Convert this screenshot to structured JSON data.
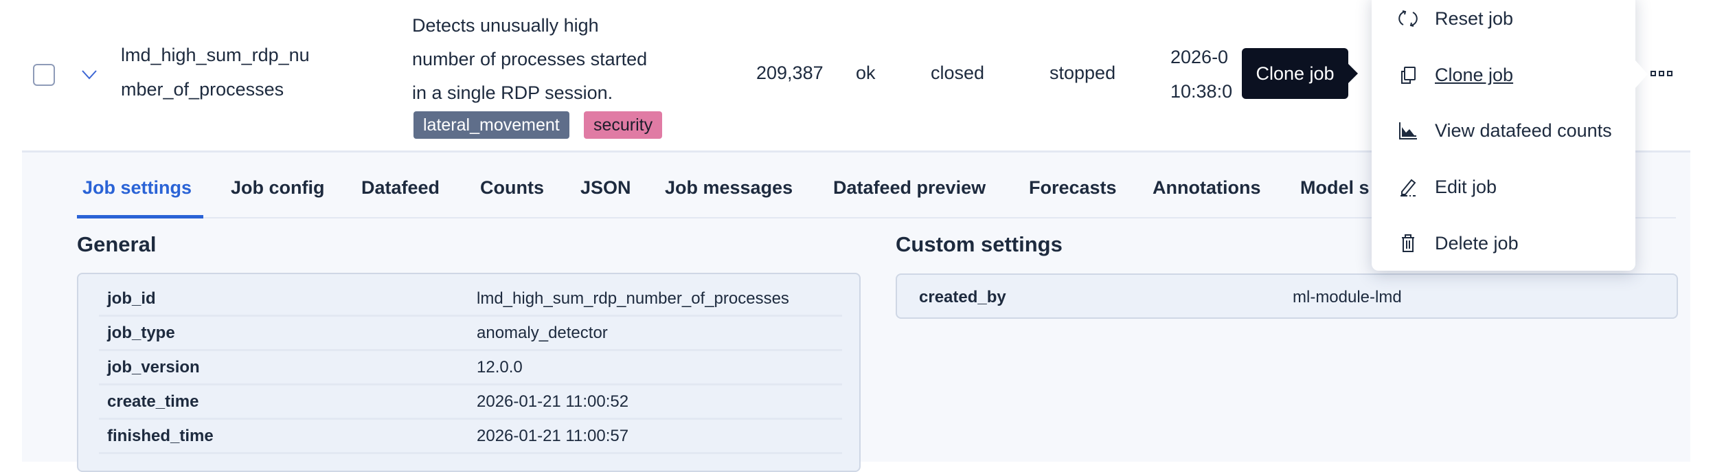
{
  "row": {
    "job_id_lines": [
      "lmd_high_sum_rdp_nu",
      "mber_of_processes"
    ],
    "description_lines": [
      "Detects unusually high",
      "number of processes started",
      "in a single RDP session."
    ],
    "groups": [
      {
        "label": "lateral_movement",
        "color": "#5f6e8a",
        "text_color": "#ffffff"
      },
      {
        "label": "security",
        "color": "#e07ba4",
        "text_color": "#1d1d2b"
      }
    ],
    "processed_records": "209,387",
    "memory_status": "ok",
    "job_state": "closed",
    "datafeed_state": "stopped",
    "latest_timestamp_lines": [
      "2026-0",
      "10:38:0"
    ]
  },
  "tooltip": "Clone job",
  "actions_menu": {
    "items": [
      {
        "label": "Reset job",
        "icon": "refresh-icon"
      },
      {
        "label": "Clone job",
        "icon": "copy-icon"
      },
      {
        "label": "View datafeed counts",
        "icon": "area-chart-icon"
      },
      {
        "label": "Edit job",
        "icon": "pencil-icon"
      },
      {
        "label": "Delete job",
        "icon": "trash-icon"
      }
    ]
  },
  "tabs": [
    "Job settings",
    "Job config",
    "Datafeed",
    "Counts",
    "JSON",
    "Job messages",
    "Datafeed preview",
    "Forecasts",
    "Annotations",
    "Model s"
  ],
  "active_tab": "Job settings",
  "general": {
    "title": "General",
    "rows": [
      {
        "key": "job_id",
        "value": "lmd_high_sum_rdp_number_of_processes"
      },
      {
        "key": "job_type",
        "value": "anomaly_detector"
      },
      {
        "key": "job_version",
        "value": "12.0.0"
      },
      {
        "key": "create_time",
        "value": "2026-01-21 11:00:52"
      },
      {
        "key": "finished_time",
        "value": "2026-01-21 11:00:57"
      }
    ]
  },
  "custom_settings": {
    "title": "Custom settings",
    "rows": [
      {
        "key": "created_by",
        "value": "ml-module-lmd"
      }
    ]
  },
  "colors": {
    "accent": "#2a63d6",
    "text": "#1d2a3e",
    "tooltip_bg": "#0b1121",
    "panel_bg": "#ecf1f9",
    "expanded_bg": "#f6f8fc"
  }
}
